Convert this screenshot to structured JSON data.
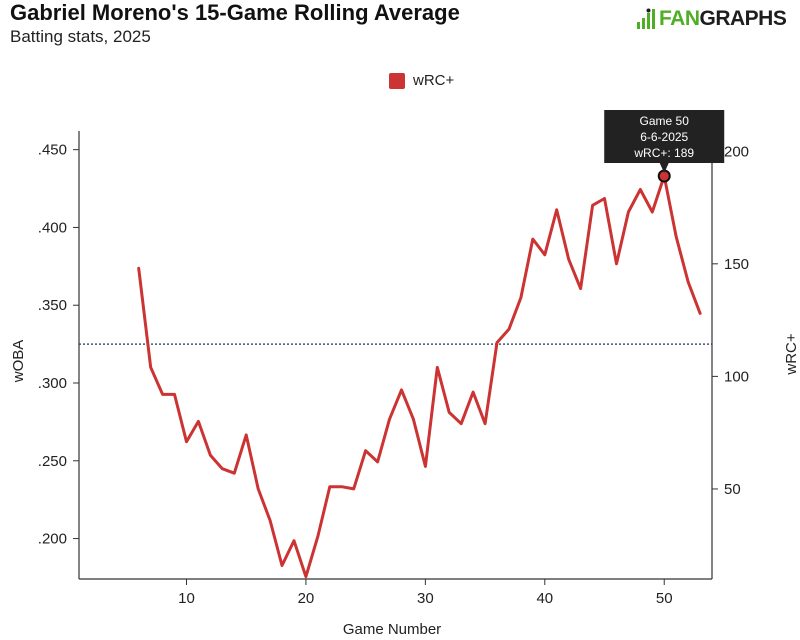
{
  "header": {
    "title": "Gabriel Moreno's 15-Game Rolling Average",
    "subtitle": "Batting stats, 2025"
  },
  "brand": {
    "text_fan": "FAN",
    "text_graphs": "GRAPHS",
    "accent_color": "#50AE26",
    "icon": "fangraphs-logo-icon"
  },
  "legend": {
    "label": "wRC+",
    "color": "#CC3333"
  },
  "tooltip": {
    "line1": "Game 50",
    "line2": "6-6-2025",
    "line3": "wRC+: 189"
  },
  "chart_data": {
    "type": "line",
    "xlabel": "Game Number",
    "ylabel_left": "wOBA",
    "ylabel_right": "wRC+",
    "x_ticks": [
      "10",
      "20",
      "30",
      "40",
      "50"
    ],
    "y_left_ticks": [
      ".200",
      ".250",
      ".300",
      ".350",
      ".400",
      ".450"
    ],
    "y_right_ticks": [
      "50",
      "100",
      "150",
      "200"
    ],
    "xlim": [
      1,
      54
    ],
    "y_left_lim": [
      0.174,
      0.462
    ],
    "y_right_lim": [
      10,
      209
    ],
    "reference_line": {
      "value_left": 0.325,
      "style": "dotted",
      "color": "#3d5a73"
    },
    "grid": false,
    "legend_position": "top-center",
    "series": [
      {
        "name": "wRC+",
        "color": "#CC3333",
        "axis": "right",
        "x": [
          6,
          7,
          8,
          9,
          10,
          11,
          12,
          13,
          14,
          15,
          16,
          17,
          18,
          19,
          20,
          21,
          22,
          23,
          24,
          25,
          26,
          27,
          28,
          29,
          30,
          31,
          32,
          33,
          34,
          35,
          36,
          37,
          38,
          39,
          40,
          41,
          42,
          43,
          44,
          45,
          46,
          47,
          48,
          49,
          50,
          51,
          52,
          53
        ],
        "y": [
          148,
          104,
          92,
          92,
          71,
          80,
          65,
          59,
          57,
          74,
          50,
          36,
          16,
          27,
          11,
          29,
          51,
          51,
          50,
          67,
          62,
          81,
          94,
          81,
          60,
          104,
          84,
          79,
          93,
          79,
          115,
          121,
          135,
          161,
          154,
          174,
          152,
          139,
          176,
          179,
          150,
          173,
          183,
          173,
          189,
          162,
          142,
          128
        ]
      }
    ],
    "highlight": {
      "x": 50,
      "y": 189
    }
  }
}
